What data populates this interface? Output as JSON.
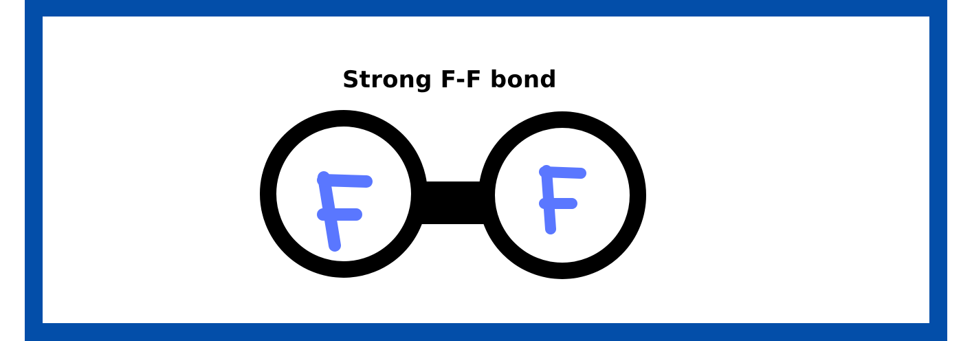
{
  "title": "Strong F-F bond",
  "atoms": [
    {
      "symbol": "F"
    },
    {
      "symbol": "F"
    }
  ],
  "colors": {
    "frame": "#034ea9",
    "bond": "#000000",
    "atom_letter": "#5a77ff",
    "background": "#ffffff"
  }
}
